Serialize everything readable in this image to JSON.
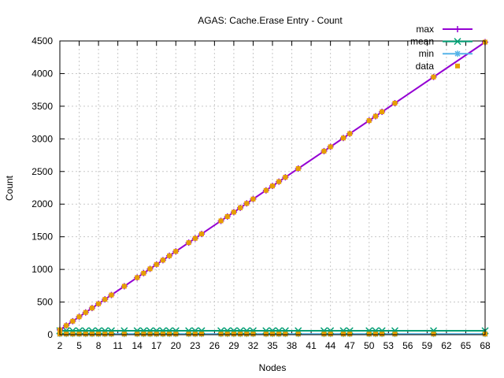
{
  "chart_data": {
    "type": "line",
    "title": "AGAS: Cache.Erase Entry - Count",
    "xlabel": "Nodes",
    "ylabel": "Count",
    "xlim": [
      2,
      68
    ],
    "ylim": [
      0,
      4500
    ],
    "xticks": [
      2,
      5,
      8,
      11,
      14,
      17,
      20,
      23,
      26,
      29,
      32,
      35,
      38,
      41,
      44,
      47,
      50,
      53,
      56,
      59,
      62,
      65,
      68
    ],
    "yticks": [
      0,
      500,
      1000,
      1500,
      2000,
      2500,
      3000,
      3500,
      4000,
      4500
    ],
    "grid": true,
    "legend_position": "top-right",
    "x": [
      2,
      3,
      4,
      5,
      6,
      7,
      8,
      9,
      10,
      12,
      14,
      15,
      16,
      17,
      18,
      19,
      20,
      22,
      23,
      24,
      27,
      28,
      29,
      30,
      31,
      32,
      34,
      35,
      36,
      37,
      39,
      43,
      44,
      46,
      47,
      50,
      51,
      52,
      54,
      60,
      68
    ],
    "series": [
      {
        "name": "max",
        "color": "#9400d3",
        "marker": "plus",
        "values": [
          74,
          140,
          207,
          274,
          341,
          408,
          474,
          541,
          608,
          742,
          875,
          942,
          1009,
          1076,
          1142,
          1209,
          1276,
          1410,
          1476,
          1543,
          1744,
          1810,
          1877,
          1944,
          2011,
          2078,
          2211,
          2278,
          2345,
          2412,
          2545,
          2812,
          2879,
          3013,
          3080,
          3280,
          3347,
          3414,
          3547,
          3948,
          4482
        ]
      },
      {
        "name": "mean",
        "color": "#009e73",
        "marker": "x",
        "values": [
          60,
          60,
          60,
          60,
          60,
          60,
          60,
          60,
          60,
          60,
          60,
          60,
          60,
          60,
          60,
          60,
          60,
          60,
          60,
          60,
          60,
          60,
          60,
          60,
          60,
          60,
          60,
          60,
          60,
          60,
          60,
          60,
          60,
          60,
          60,
          60,
          60,
          60,
          60,
          60,
          60
        ]
      },
      {
        "name": "min",
        "color": "#56b4e9",
        "marker": "star",
        "values": [
          10,
          10,
          10,
          10,
          10,
          10,
          10,
          10,
          10,
          10,
          10,
          10,
          10,
          10,
          10,
          10,
          10,
          10,
          10,
          10,
          10,
          10,
          10,
          10,
          10,
          10,
          10,
          10,
          10,
          10,
          10,
          10,
          10,
          10,
          10,
          10,
          10,
          10,
          10,
          10,
          10
        ]
      },
      {
        "name": "data",
        "color": "#e69f00",
        "marker": "square",
        "style": "points"
      }
    ]
  }
}
